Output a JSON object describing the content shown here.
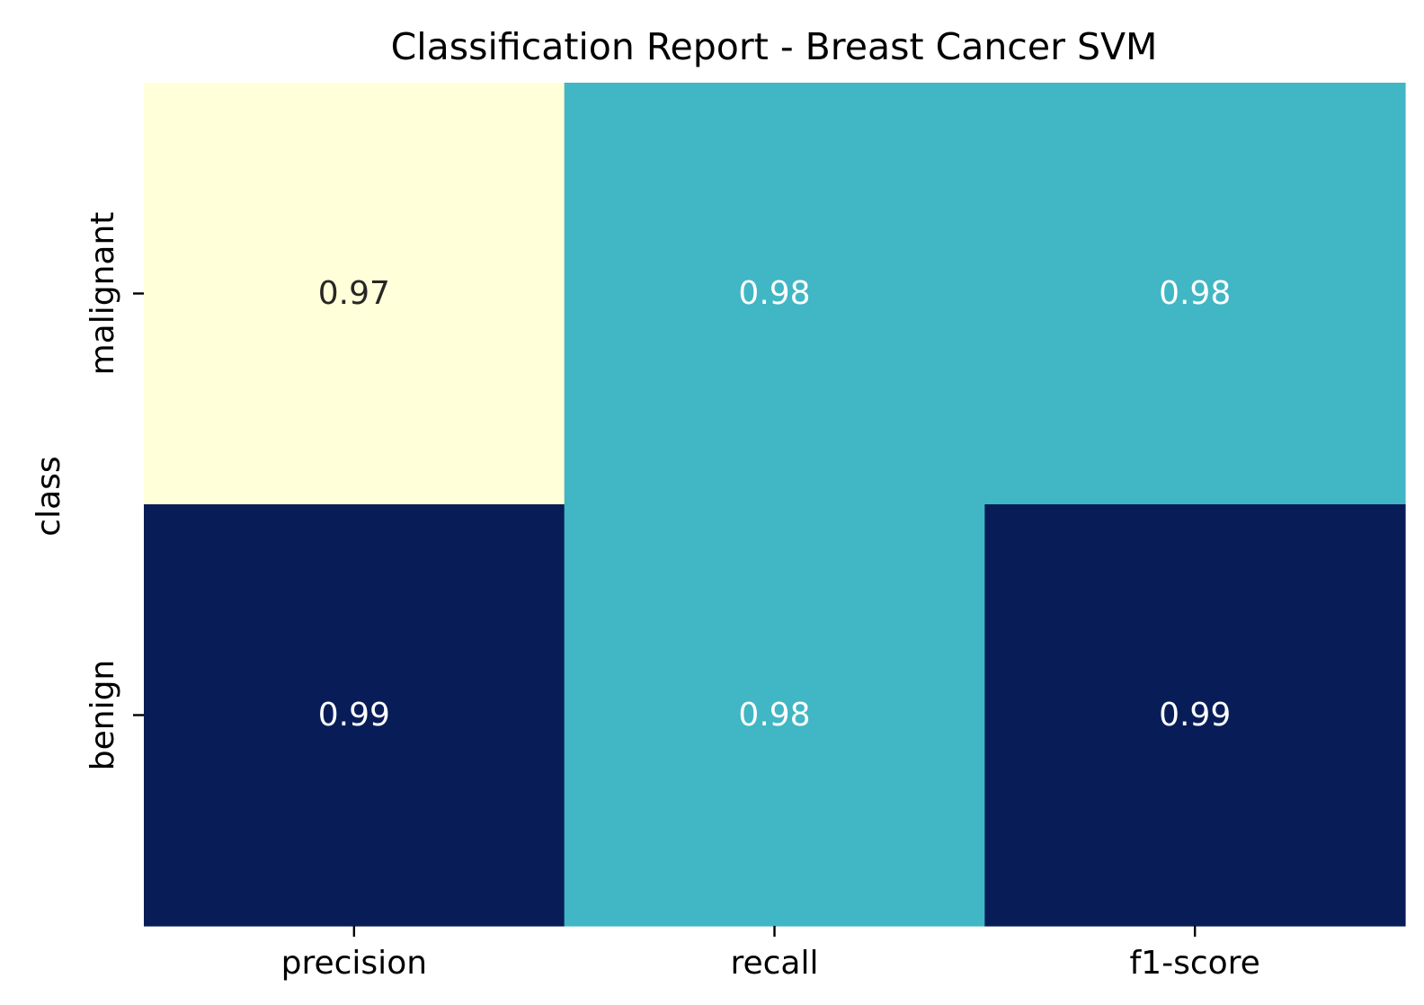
{
  "chart_data": {
    "type": "heatmap",
    "title": "Classification Report - Breast Cancer SVM",
    "xlabel": "",
    "ylabel": "class",
    "x_categories": [
      "precision",
      "recall",
      "f1-score"
    ],
    "y_categories": [
      "malignant",
      "benign"
    ],
    "values": [
      [
        0.97,
        0.98,
        0.98
      ],
      [
        0.99,
        0.98,
        0.99
      ]
    ],
    "value_labels": [
      [
        "0.97",
        "0.98",
        "0.98"
      ],
      [
        "0.99",
        "0.98",
        "0.99"
      ]
    ],
    "colormap": "YlGnBu",
    "vmin": 0.97,
    "vmax": 0.99,
    "colorbar": false,
    "grid": false
  }
}
